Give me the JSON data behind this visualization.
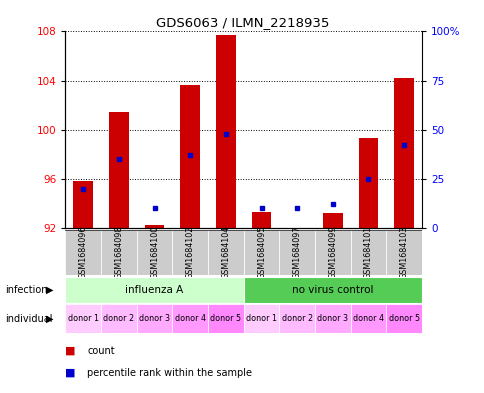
{
  "title": "GDS6063 / ILMN_2218935",
  "samples": [
    "GSM1684096",
    "GSM1684098",
    "GSM1684100",
    "GSM1684102",
    "GSM1684104",
    "GSM1684095",
    "GSM1684097",
    "GSM1684099",
    "GSM1684101",
    "GSM1684103"
  ],
  "count_values": [
    95.8,
    101.4,
    92.2,
    103.6,
    107.7,
    93.3,
    92.0,
    93.2,
    99.3,
    104.2
  ],
  "percentile_values": [
    20,
    35,
    10,
    37,
    48,
    10,
    10,
    12,
    25,
    42
  ],
  "ylim_left": [
    92,
    108
  ],
  "ylim_right": [
    0,
    100
  ],
  "yticks_left": [
    92,
    96,
    100,
    104,
    108
  ],
  "yticks_right": [
    0,
    25,
    50,
    75,
    100
  ],
  "yticklabels_right": [
    "0",
    "25",
    "50",
    "75",
    "100%"
  ],
  "bar_color": "#cc0000",
  "dot_color": "#0000cc",
  "infection_labels": [
    "influenza A",
    "no virus control"
  ],
  "infection_color_left": "#ccffcc",
  "infection_color_right": "#55cc55",
  "individual_colors": [
    "#ffccff",
    "#ffbbff",
    "#ff99ff",
    "#ff88ee",
    "#ff77ee",
    "#ffccff",
    "#ffbbff",
    "#ff99ff",
    "#ff88ee",
    "#ff77ee"
  ],
  "individual_labels": [
    "donor 1",
    "donor 2",
    "donor 3",
    "donor 4",
    "donor 5",
    "donor 1",
    "donor 2",
    "donor 3",
    "donor 4",
    "donor 5"
  ],
  "bg_color": "#ffffff",
  "tick_bg_color": "#cccccc",
  "legend_count_label": "count",
  "legend_pct_label": "percentile rank within the sample",
  "infection_row_label": "infection",
  "individual_row_label": "individual"
}
